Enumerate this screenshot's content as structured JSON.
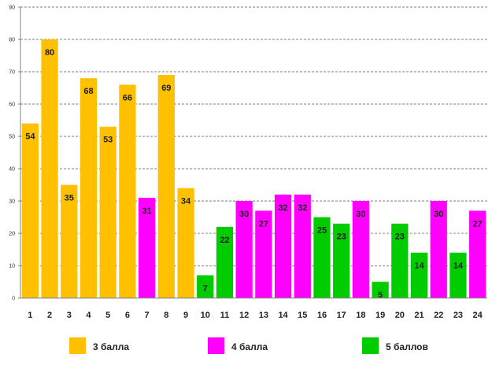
{
  "chart_data": {
    "type": "bar",
    "title": "",
    "xlabel": "",
    "ylabel": "",
    "ylim": [
      0,
      90
    ],
    "yticks": [
      0,
      10,
      20,
      30,
      40,
      50,
      60,
      70,
      80,
      90
    ],
    "grid": true,
    "legend_position": "bottom",
    "categories": [
      "1",
      "2",
      "3",
      "4",
      "5",
      "6",
      "7",
      "8",
      "9",
      "10",
      "11",
      "12",
      "13",
      "14",
      "15",
      "16",
      "17",
      "18",
      "19",
      "20",
      "21",
      "22",
      "23",
      "24"
    ],
    "values": [
      54,
      80,
      35,
      68,
      53,
      66,
      31,
      69,
      34,
      7,
      22,
      30,
      27,
      32,
      32,
      25,
      23,
      30,
      5,
      23,
      14,
      30,
      14,
      27
    ],
    "bar_groups": [
      "3",
      "3",
      "3",
      "3",
      "3",
      "3",
      "4",
      "3",
      "3",
      "5",
      "5",
      "4",
      "4",
      "4",
      "4",
      "5",
      "5",
      "4",
      "5",
      "5",
      "5",
      "4",
      "5",
      "4"
    ],
    "series": [
      {
        "key": "3",
        "name": "3 балла",
        "color": "#FFC000"
      },
      {
        "key": "4",
        "name": "4 балла",
        "color": "#FF00FF"
      },
      {
        "key": "5",
        "name": "5 баллов",
        "color": "#00CC00"
      }
    ]
  }
}
